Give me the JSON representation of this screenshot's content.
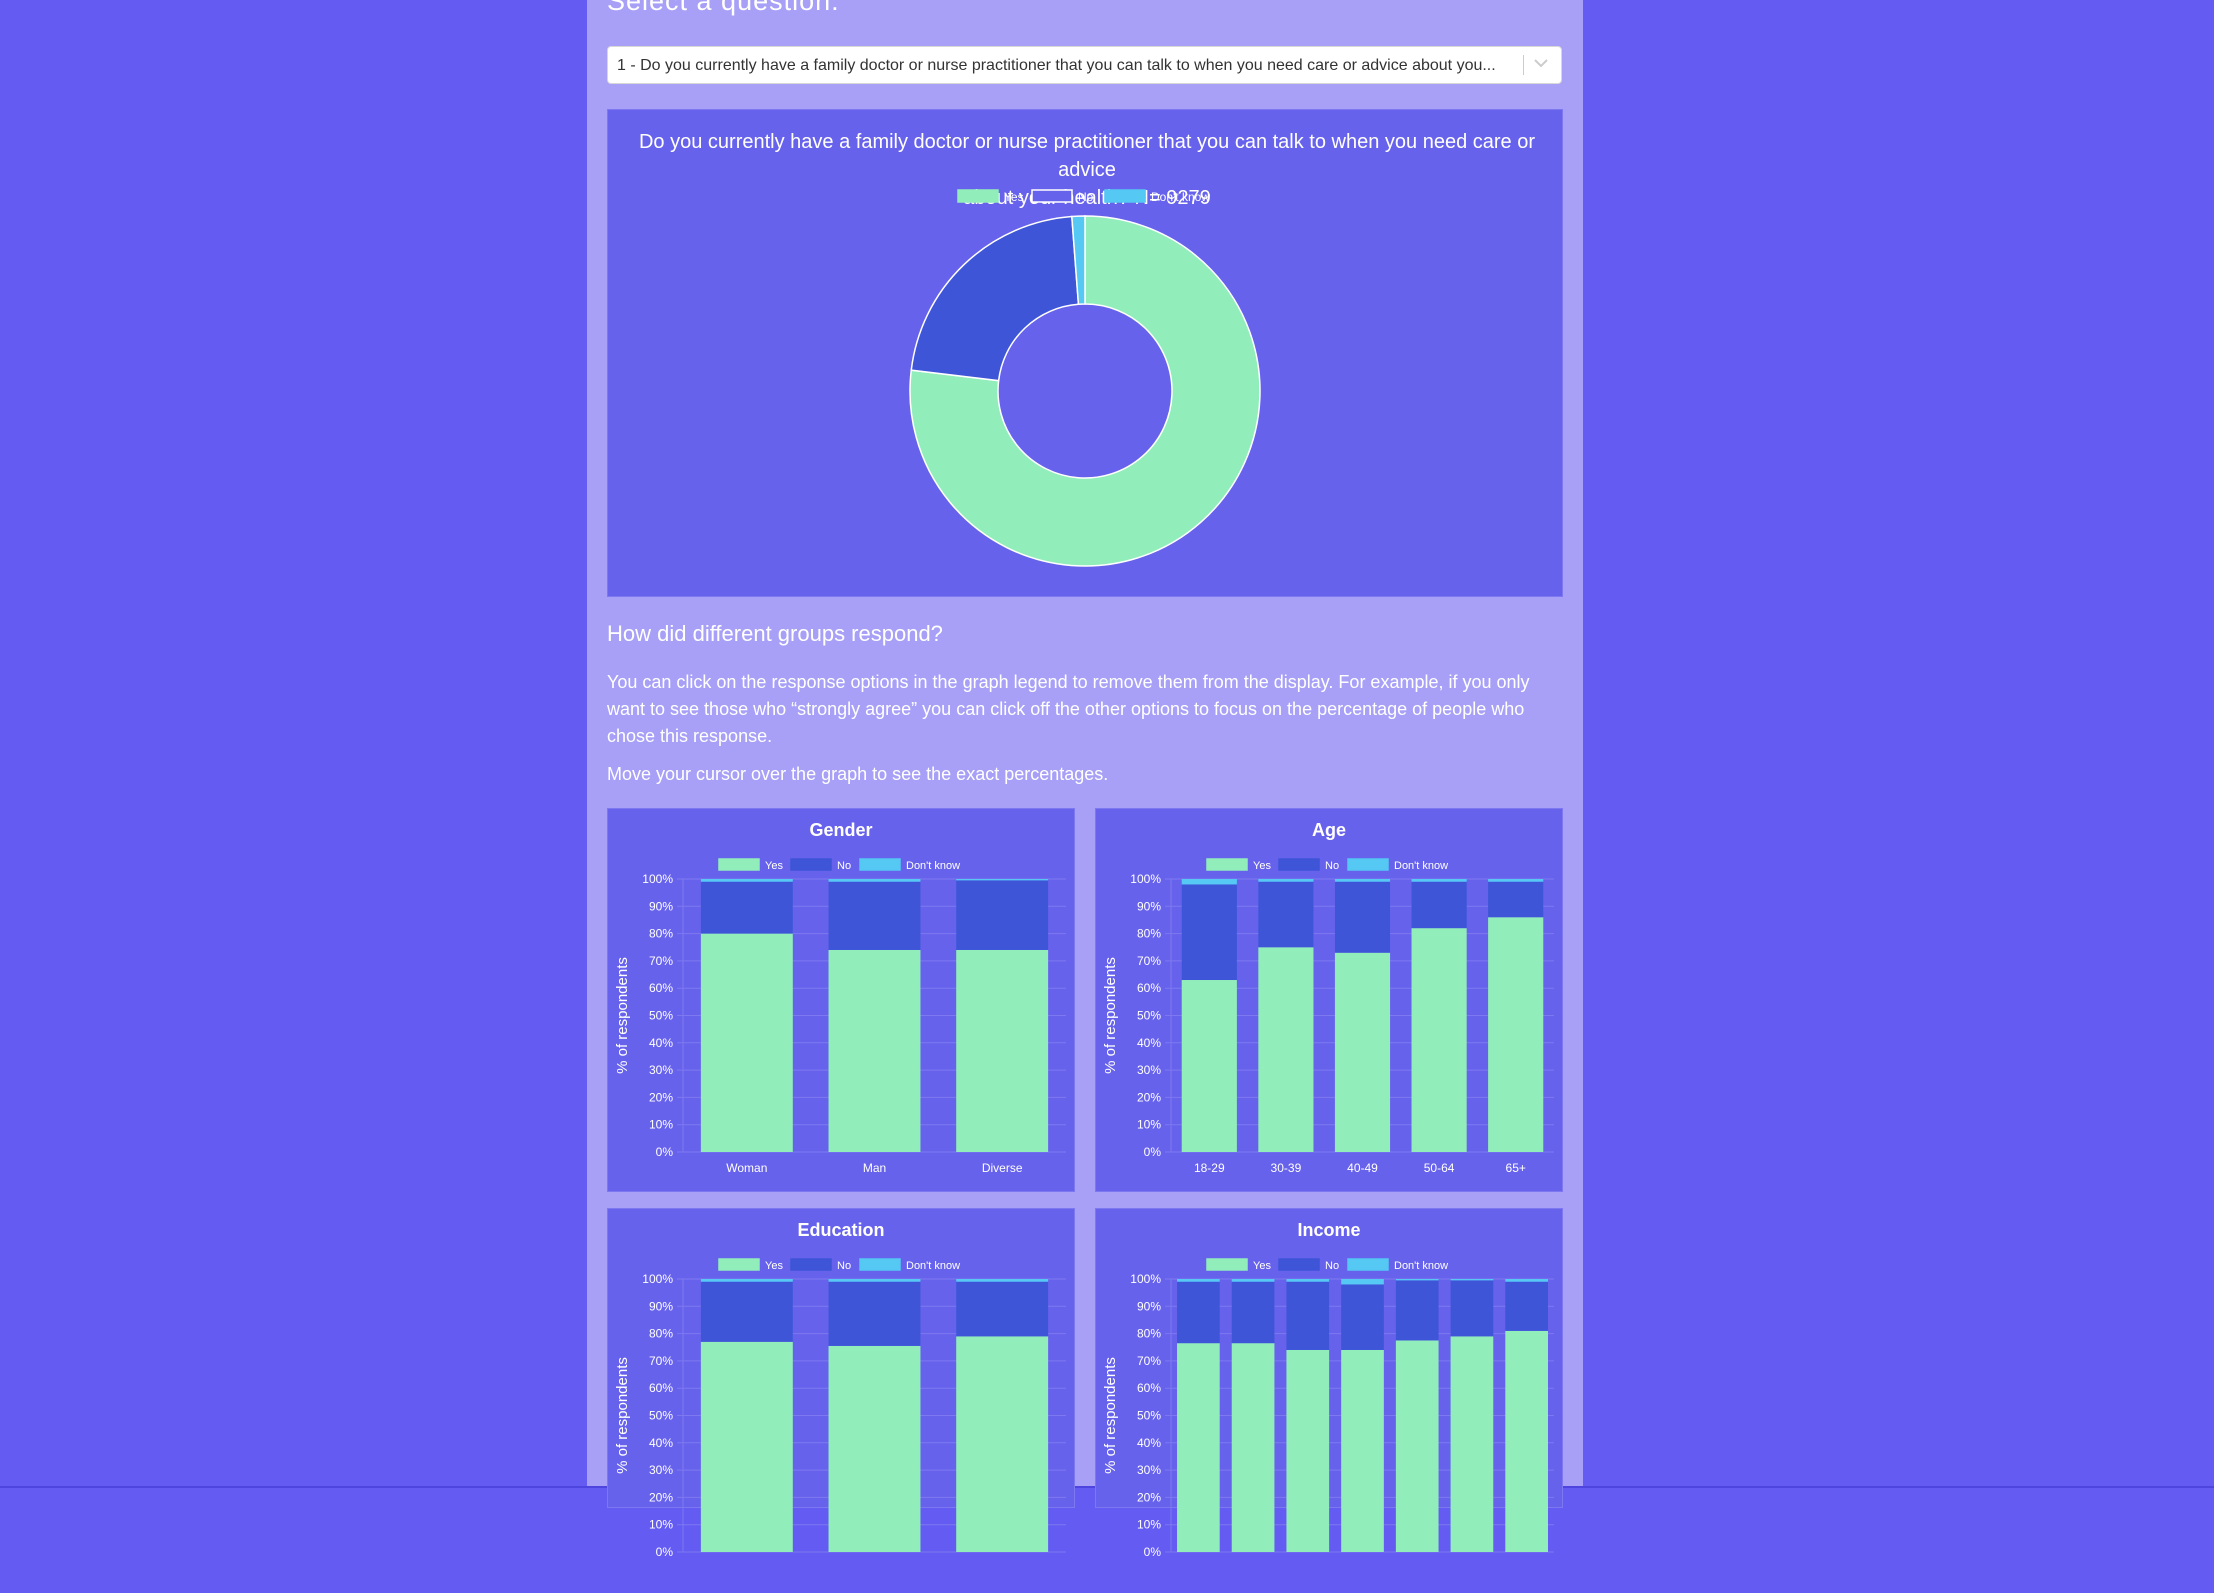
{
  "page": {
    "select_heading": "Select a question:",
    "select_value": "1 - Do you currently have a family doctor or nurse practitioner that you can talk to when you need care or advice about you...",
    "section_heading": "How did different groups respond?",
    "paragraph1": "You can click on the response options in the graph legend to remove them from the display. For example, if you only want to see those who “strongly agree” you can click off the other options to focus on the percentage of people who chose this response.",
    "paragraph2": "Move your cursor over the graph to see the exact percentages."
  },
  "colors": {
    "yes": "#91eebb",
    "no": "#3e55d8",
    "dont_know": "#55c8f4",
    "panel": "#6762ec",
    "grid": "#7e79f0",
    "text": "#ffffff"
  },
  "chart_data": [
    {
      "type": "pie",
      "variant": "doughnut",
      "title_line1": "Do you currently have a family doctor or nurse practitioner that you can talk to when you need care or advice",
      "title_line2": "about your health? N= 9279",
      "legend": [
        "Yes",
        "No",
        "Don't know"
      ],
      "legend_position": "top",
      "values": [
        76.9,
        21.9,
        1.2
      ]
    },
    {
      "type": "bar",
      "stacked": true,
      "title": "Gender",
      "ylabel": "% of respondents",
      "ylim": [
        0,
        100
      ],
      "yticks": [
        "0%",
        "10%",
        "20%",
        "30%",
        "40%",
        "50%",
        "60%",
        "70%",
        "80%",
        "90%",
        "100%"
      ],
      "categories": [
        "Woman",
        "Man",
        "Diverse"
      ],
      "series": [
        {
          "name": "Yes",
          "values": [
            80,
            74,
            74
          ]
        },
        {
          "name": "No",
          "values": [
            19,
            25,
            25.5
          ]
        },
        {
          "name": "Don't know",
          "values": [
            1,
            1.5,
            0.5
          ]
        }
      ]
    },
    {
      "type": "bar",
      "stacked": true,
      "title": "Age",
      "ylabel": "% of respondents",
      "ylim": [
        0,
        100
      ],
      "yticks": [
        "0%",
        "10%",
        "20%",
        "30%",
        "40%",
        "50%",
        "60%",
        "70%",
        "80%",
        "90%",
        "100%"
      ],
      "categories": [
        "18-29",
        "30-39",
        "40-49",
        "50-64",
        "65+"
      ],
      "series": [
        {
          "name": "Yes",
          "values": [
            63,
            75,
            73,
            82,
            86
          ]
        },
        {
          "name": "No",
          "values": [
            35,
            24,
            26,
            17,
            13
          ]
        },
        {
          "name": "Don't know",
          "values": [
            2.5,
            1,
            1,
            1,
            1
          ]
        }
      ]
    },
    {
      "type": "bar",
      "stacked": true,
      "title": "Education",
      "ylabel": "% of respondents",
      "ylim": [
        0,
        100
      ],
      "yticks": [
        "0%",
        "10%",
        "20%",
        "30%",
        "40%",
        "50%",
        "60%",
        "70%",
        "80%",
        "90%",
        "100%"
      ],
      "categories": [
        "",
        "",
        ""
      ],
      "series": [
        {
          "name": "Yes",
          "values": [
            77,
            75.5,
            79
          ]
        },
        {
          "name": "No",
          "values": [
            22,
            23.5,
            20
          ]
        },
        {
          "name": "Don't know",
          "values": [
            1,
            1,
            1
          ]
        }
      ]
    },
    {
      "type": "bar",
      "stacked": true,
      "title": "Income",
      "ylabel": "% of respondents",
      "ylim": [
        0,
        100
      ],
      "yticks": [
        "0%",
        "10%",
        "20%",
        "30%",
        "40%",
        "50%",
        "60%",
        "70%",
        "80%",
        "90%",
        "100%"
      ],
      "categories": [
        "",
        "",
        "",
        "",
        "",
        "",
        ""
      ],
      "series": [
        {
          "name": "Yes",
          "values": [
            76.5,
            76.5,
            74,
            74,
            77.5,
            79,
            81
          ]
        },
        {
          "name": "No",
          "values": [
            22.5,
            22.5,
            25,
            24,
            22,
            20.5,
            18
          ]
        },
        {
          "name": "Don't know",
          "values": [
            1,
            1,
            1,
            2,
            0.5,
            0.5,
            1
          ]
        }
      ]
    }
  ]
}
